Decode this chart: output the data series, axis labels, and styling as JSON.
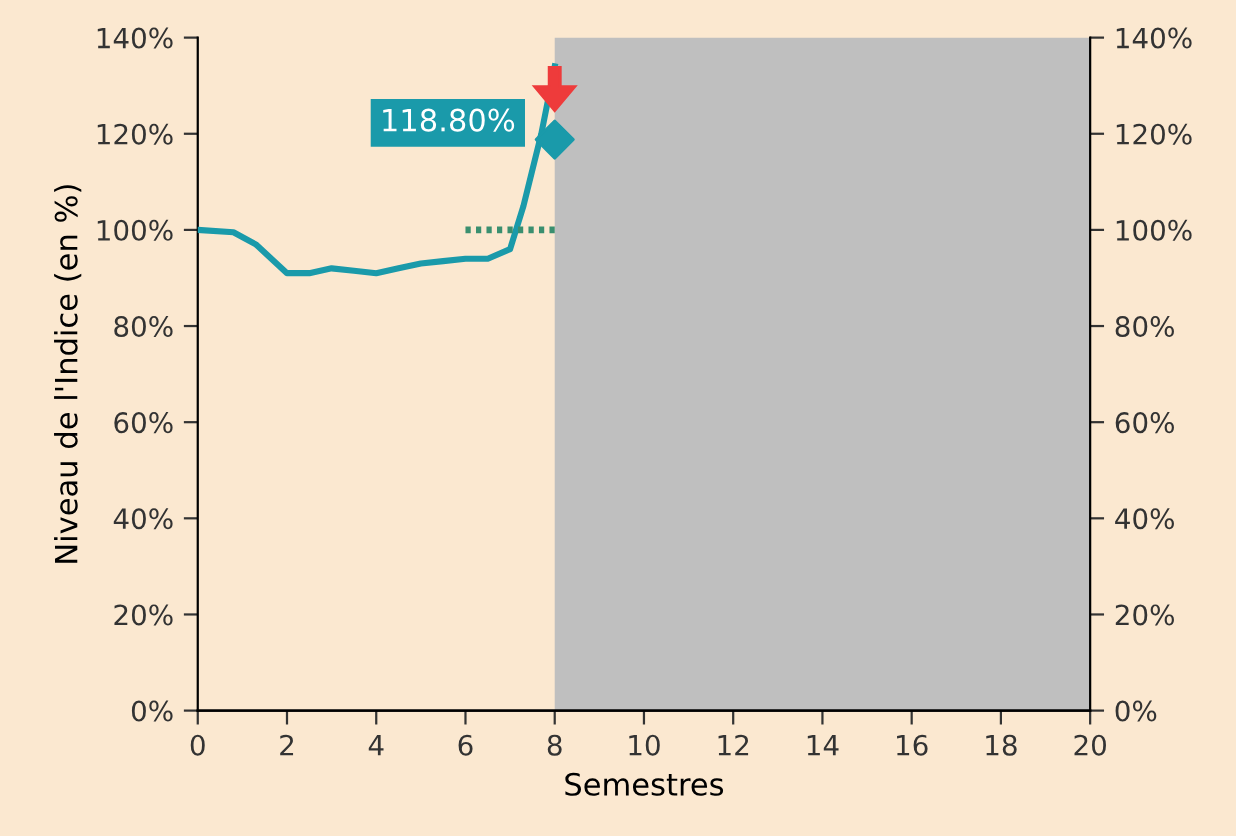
{
  "chart_data": {
    "type": "line",
    "xlabel": "Semestres",
    "ylabel": "Niveau de l'Indice (en %)",
    "xlim": [
      0,
      20
    ],
    "xticks": [
      0,
      2,
      4,
      6,
      8,
      10,
      12,
      14,
      16,
      18,
      20
    ],
    "ylim": [
      0,
      140
    ],
    "yticks": [
      {
        "value": 0,
        "label": "0%"
      },
      {
        "value": 20,
        "label": "20%"
      },
      {
        "value": 40,
        "label": "40%"
      },
      {
        "value": 60,
        "label": "60%"
      },
      {
        "value": 80,
        "label": "80%"
      },
      {
        "value": 100,
        "label": "100%"
      },
      {
        "value": 120,
        "label": "120%"
      },
      {
        "value": 140,
        "label": "140%"
      }
    ],
    "y2lim": [
      0,
      140
    ],
    "y2ticks": [
      {
        "value": 0,
        "label": "0%"
      },
      {
        "value": 20,
        "label": "20%"
      },
      {
        "value": 40,
        "label": "40%"
      },
      {
        "value": 60,
        "label": "60%"
      },
      {
        "value": 80,
        "label": "80%"
      },
      {
        "value": 100,
        "label": "100%"
      },
      {
        "value": 120,
        "label": "120%"
      },
      {
        "value": 140,
        "label": "140%"
      }
    ],
    "grid": false,
    "legend": false,
    "bands": [
      {
        "axis": "x",
        "from": 8,
        "to": 20,
        "color": "#bfbfbf"
      }
    ],
    "series": [
      {
        "color": "#1a9aaa",
        "line_style": "solid",
        "marker": "none",
        "x": [
          0,
          0.8,
          1.3,
          2,
          2.5,
          3,
          3.5,
          4,
          4.5,
          5,
          5.5,
          6,
          6.5,
          7,
          7.3,
          7.7,
          8
        ],
        "values": [
          100,
          99.5,
          97,
          91,
          91,
          92,
          91.5,
          91,
          92,
          93,
          93.5,
          94,
          94,
          96,
          105,
          120,
          134
        ]
      },
      {
        "type": "line",
        "color": "#3a8f6f",
        "line_style": "dotted",
        "marker": "none",
        "x": [
          6,
          8
        ],
        "values": [
          100,
          100
        ]
      },
      {
        "type": "scatter",
        "color": "#1a9aaa",
        "marker": "diamond",
        "x": [
          8
        ],
        "values": [
          118.8
        ],
        "value_labels": [
          "118.80%"
        ]
      }
    ]
  }
}
